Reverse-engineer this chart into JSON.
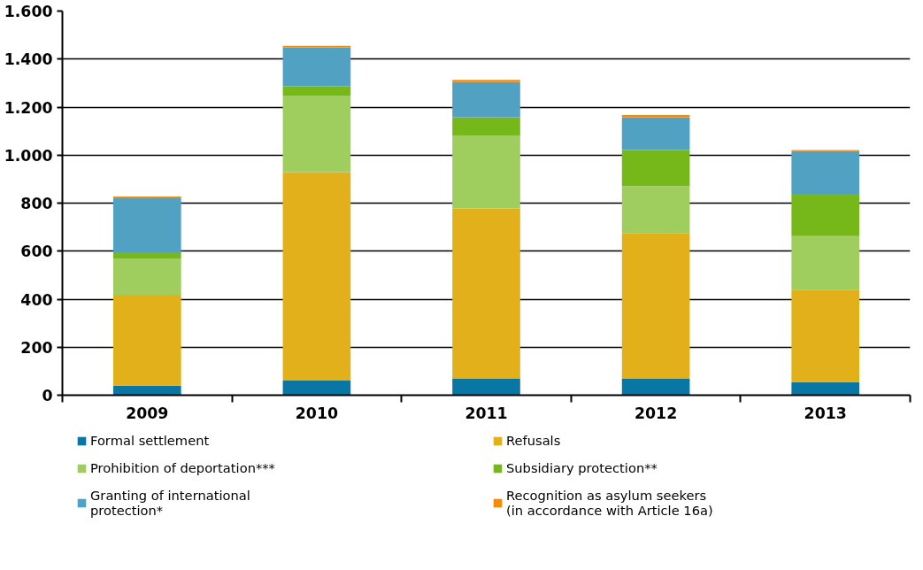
{
  "chart_data": {
    "type": "bar",
    "stacked": true,
    "categories": [
      "2009",
      "2010",
      "2011",
      "2012",
      "2013"
    ],
    "series": [
      {
        "name": "Formal settlement",
        "color": "#0a76a4",
        "values": [
          40,
          61,
          68,
          68,
          54
        ]
      },
      {
        "name": "Refusals",
        "color": "#e1b01a",
        "values": [
          378,
          868,
          710,
          608,
          386
        ]
      },
      {
        "name": "Prohibition of deportation***",
        "color": "#9fce5f",
        "values": [
          150,
          319,
          304,
          195,
          223
        ]
      },
      {
        "name": "Subsidiary protection**",
        "color": "#76b81a",
        "values": [
          27,
          39,
          76,
          150,
          176
        ]
      },
      {
        "name": "Granting of international protection*",
        "color": "#51a2c2",
        "values": [
          225,
          162,
          146,
          137,
          178
        ]
      },
      {
        "name": "Recognition as asylum seekers (in accordance with Article 16a)",
        "color": "#f28c0f",
        "values": [
          8,
          6,
          9,
          9,
          4
        ]
      }
    ],
    "ylim": [
      0,
      1600
    ],
    "yticks": [
      {
        "value": 0,
        "label": "0"
      },
      {
        "value": 200,
        "label": "200"
      },
      {
        "value": 400,
        "label": "400"
      },
      {
        "value": 600,
        "label": "600"
      },
      {
        "value": 800,
        "label": "800"
      },
      {
        "value": 1000,
        "label": "1.000"
      },
      {
        "value": 1200,
        "label": "1.200"
      },
      {
        "value": 1400,
        "label": "1.400"
      },
      {
        "value": 1600,
        "label": "1.600"
      }
    ],
    "grid": "y",
    "legend": "bottom"
  }
}
